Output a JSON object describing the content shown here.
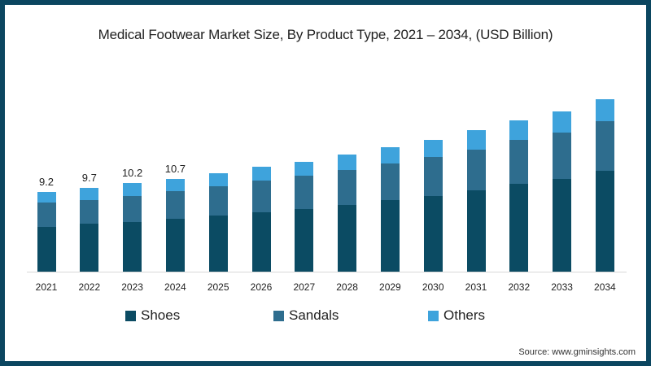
{
  "title": "Medical Footwear Market Size, By Product Type, 2021 – 2034, (USD Billion)",
  "source": "Source: www.gminsights.com",
  "colors": {
    "Shoes": "#0b4b63",
    "Sandals": "#2e6d8e",
    "Others": "#3ea3dc",
    "frame": "#0b4660"
  },
  "legend": [
    {
      "label": "Shoes",
      "color": "#0b4b63"
    },
    {
      "label": "Sandals",
      "color": "#2e6d8e"
    },
    {
      "label": "Others",
      "color": "#3ea3dc"
    }
  ],
  "chart_data": {
    "type": "bar",
    "stacked": true,
    "title": "Medical Footwear Market Size, By Product Type, 2021 – 2034, (USD Billion)",
    "xlabel": "",
    "ylabel": "USD Billion",
    "grid": false,
    "legend_position": "bottom",
    "categories": [
      "2021",
      "2022",
      "2023",
      "2024",
      "2025",
      "2026",
      "2027",
      "2028",
      "2029",
      "2030",
      "2031",
      "2032",
      "2033",
      "2034"
    ],
    "series": [
      {
        "name": "Shoes",
        "values": [
          5.2,
          5.5,
          5.7,
          6.1,
          6.5,
          6.9,
          7.2,
          7.7,
          8.3,
          8.7,
          9.4,
          10.1,
          10.7,
          11.6
        ]
      },
      {
        "name": "Sandals",
        "values": [
          2.8,
          2.8,
          3.0,
          3.2,
          3.4,
          3.6,
          3.9,
          4.0,
          4.2,
          4.5,
          4.7,
          5.1,
          5.4,
          5.8
        ]
      },
      {
        "name": "Others",
        "values": [
          1.2,
          1.4,
          1.5,
          1.4,
          1.5,
          1.6,
          1.6,
          1.8,
          1.9,
          2.0,
          2.2,
          2.3,
          2.4,
          2.5
        ]
      }
    ],
    "totals": [
      9.2,
      9.7,
      10.2,
      10.7,
      11.4,
      12.1,
      12.7,
      13.5,
      14.4,
      15.2,
      16.3,
      17.5,
      18.5,
      19.9
    ],
    "data_labels": [
      {
        "category": "2021",
        "text": "9.2"
      },
      {
        "category": "2022",
        "text": "9.7"
      },
      {
        "category": "2023",
        "text": "10.2"
      },
      {
        "category": "2024",
        "text": "10.7"
      }
    ]
  }
}
